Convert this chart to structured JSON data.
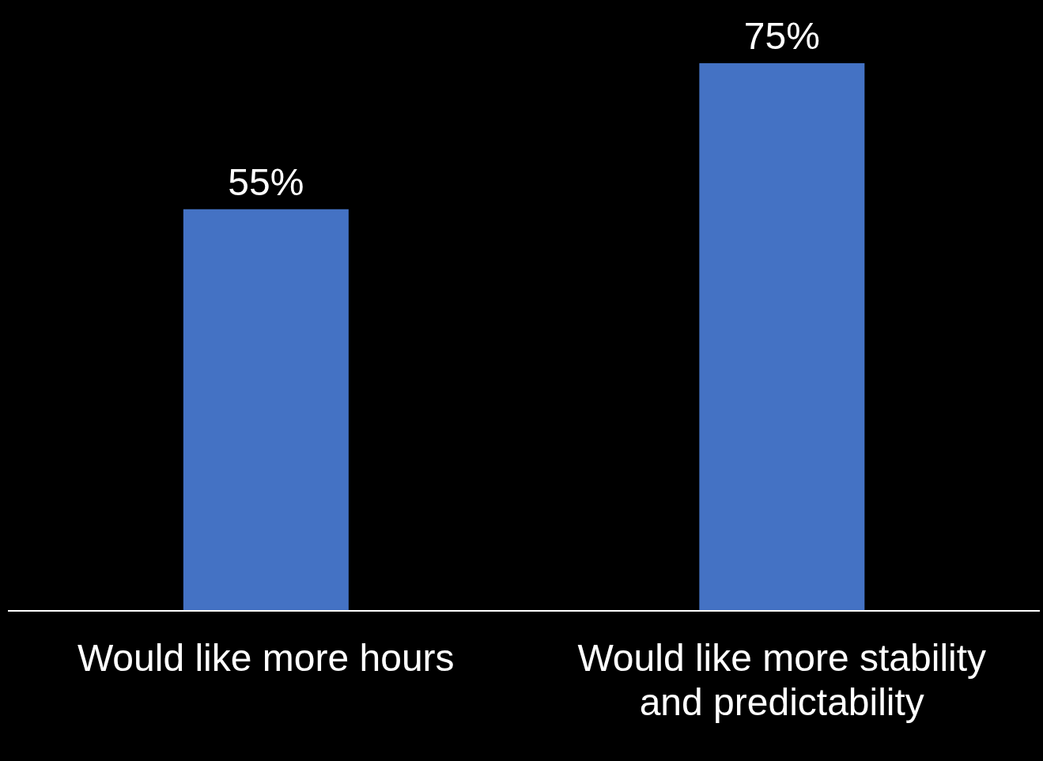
{
  "chart_data": {
    "type": "bar",
    "categories": [
      "Would like more hours",
      "Would like more stability and predictability"
    ],
    "values": [
      55,
      75
    ],
    "value_labels": [
      "55%",
      "75%"
    ],
    "color": "#4472c4"
  }
}
